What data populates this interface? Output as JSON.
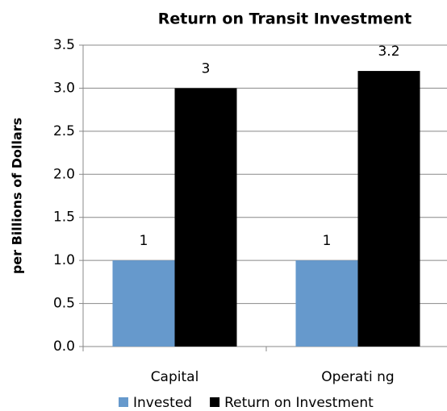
{
  "chart_data": {
    "type": "bar",
    "title": "Return on Transit Investment",
    "y_label": "per Billions of Dollars",
    "categories": [
      "Capital",
      "Operati ng"
    ],
    "series": [
      {
        "name": "Invested",
        "color": "#6699cc",
        "values": [
          1,
          1
        ]
      },
      {
        "name": "Return on Investment",
        "color": "#000000",
        "values": [
          3,
          3.2
        ]
      }
    ],
    "ylim": [
      0,
      3.5
    ],
    "yticks": [
      {
        "value": 0,
        "label": "0.0"
      },
      0.5,
      {
        "value": 1,
        "label": "1.0"
      },
      1.5,
      {
        "value": 2,
        "label": "2.0"
      },
      2.5,
      {
        "value": 3,
        "label": "3.0"
      },
      3.5
    ],
    "grid": true,
    "legend": "bottom"
  }
}
